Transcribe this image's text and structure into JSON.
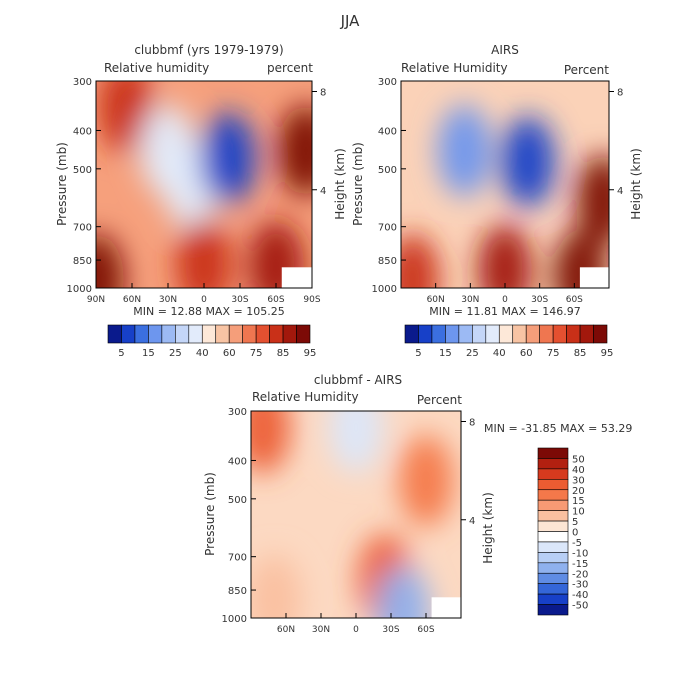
{
  "title": "JJA",
  "panels": [
    {
      "title": "clubbmf (yrs 1979-1979)",
      "left_label": "Relative humidity",
      "right_label": "percent",
      "ylabel": "Pressure (mb)",
      "ylabel_right": "Height (km)",
      "stats": "MIN =   12.88   MAX = 105.25"
    },
    {
      "title": "AIRS",
      "left_label": "Relative Humidity",
      "right_label": "Percent",
      "ylabel": "Pressure (mb)",
      "ylabel_right": "Height (km)",
      "stats": "MIN =   11.81   MAX = 146.97"
    },
    {
      "title": "clubbmf - AIRS",
      "left_label": "Relative Humidity",
      "right_label": "Percent",
      "ylabel": "Pressure (mb)",
      "ylabel_right": "Height (km)",
      "stats": "MIN = -31.85   MAX =   53.29"
    }
  ],
  "colorbar_main": {
    "labels": [
      "5",
      "15",
      "25",
      "40",
      "60",
      "75",
      "85",
      "95"
    ],
    "colors": [
      "#0a1a8c",
      "#1740c8",
      "#3b6fe0",
      "#6d96ee",
      "#9cbaf4",
      "#c4d6f8",
      "#e2ebfb",
      "#fde8d8",
      "#f8c4a4",
      "#f59e7a",
      "#ef7650",
      "#e45030",
      "#c93018",
      "#a2180c",
      "#7c0a06"
    ]
  },
  "colorbar_diff": {
    "labels": [
      "50",
      "40",
      "30",
      "20",
      "15",
      "10",
      "5",
      "0",
      "-5",
      "-10",
      "-15",
      "-20",
      "-30",
      "-40",
      "-50"
    ],
    "colors": [
      "#7c0a06",
      "#b22010",
      "#d63a1e",
      "#ec5c32",
      "#f4784a",
      "#f79a74",
      "#fac0a0",
      "#fde6d4",
      "#ffffff",
      "#dbe7fa",
      "#b8cff5",
      "#8fb1ee",
      "#5f8ce4",
      "#3466d8",
      "#1740c8",
      "#0a1a8c"
    ]
  },
  "chart_data": [
    {
      "type": "heatmap",
      "title": "clubbmf (yrs 1979-1979)",
      "ylabel": "Pressure (mb)",
      "ylabel_right": "Height (km)",
      "x_ticks": [
        "90N",
        "60N",
        "30N",
        "0",
        "30S",
        "60S",
        "90S"
      ],
      "x_values": [
        90,
        60,
        30,
        0,
        -30,
        -60,
        -90
      ],
      "y_ticks": [
        300,
        400,
        500,
        700,
        850,
        1000
      ],
      "y_ticks_right": [
        8,
        4
      ],
      "ylim": [
        1000,
        300
      ],
      "min": 12.88,
      "max": 105.25,
      "rh_blobs": [
        {
          "lat": 90,
          "p": 950,
          "value": 100
        },
        {
          "lat": 65,
          "p": 350,
          "value": 82
        },
        {
          "lat": 30,
          "p": 450,
          "value": 45
        },
        {
          "lat": 10,
          "p": 550,
          "value": 40
        },
        {
          "lat": -20,
          "p": 470,
          "value": 8
        },
        {
          "lat": 0,
          "p": 870,
          "value": 85
        },
        {
          "lat": -60,
          "p": 880,
          "value": 92
        },
        {
          "lat": -85,
          "p": 450,
          "value": 95
        }
      ]
    },
    {
      "type": "heatmap",
      "title": "AIRS",
      "ylabel": "Pressure (mb)",
      "ylabel_right": "Height (km)",
      "x_ticks": [
        "60N",
        "30N",
        "0",
        "30S",
        "60S"
      ],
      "x_values": [
        60,
        30,
        0,
        -30,
        -60
      ],
      "y_ticks": [
        300,
        400,
        500,
        700,
        850,
        1000
      ],
      "y_ticks_right": [
        8,
        4
      ],
      "ylim": [
        1000,
        300
      ],
      "min": 11.81,
      "max": 146.97,
      "rh_blobs": [
        {
          "lat": 35,
          "p": 450,
          "value": 25
        },
        {
          "lat": -20,
          "p": 480,
          "value": 10
        },
        {
          "lat": 0,
          "p": 900,
          "value": 90
        },
        {
          "lat": -65,
          "p": 930,
          "value": 100
        },
        {
          "lat": -85,
          "p": 600,
          "value": 95
        },
        {
          "lat": 80,
          "p": 950,
          "value": 80
        }
      ]
    },
    {
      "type": "heatmap",
      "title": "clubbmf - AIRS",
      "ylabel": "Pressure (mb)",
      "ylabel_right": "Height (km)",
      "x_ticks": [
        "60N",
        "30N",
        "0",
        "30S",
        "60S"
      ],
      "x_values": [
        60,
        30,
        0,
        -30,
        -60
      ],
      "y_ticks": [
        300,
        400,
        500,
        700,
        850,
        1000
      ],
      "y_ticks_right": [
        8,
        4
      ],
      "ylim": [
        1000,
        300
      ],
      "min": -31.85,
      "max": 53.29,
      "diff_blobs": [
        {
          "lat": 80,
          "p": 330,
          "value": 30
        },
        {
          "lat": -25,
          "p": 800,
          "value": 30
        },
        {
          "lat": -60,
          "p": 450,
          "value": 25
        },
        {
          "lat": 0,
          "p": 330,
          "value": -10
        },
        {
          "lat": -40,
          "p": 960,
          "value": -25
        },
        {
          "lat": 70,
          "p": 900,
          "value": 10
        }
      ]
    }
  ]
}
